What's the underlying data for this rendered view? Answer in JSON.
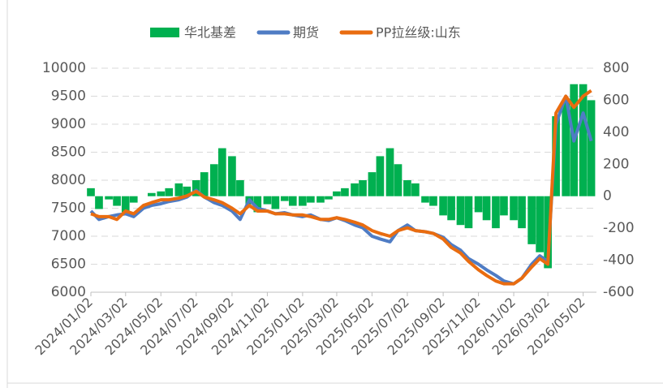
{
  "chart_data": {
    "type": "combo",
    "x": [
      "2024/01/02",
      "2024/01/16",
      "2024/02/02",
      "2024/02/16",
      "2024/03/02",
      "2024/03/16",
      "2024/04/02",
      "2024/04/16",
      "2024/05/02",
      "2024/05/16",
      "2024/06/02",
      "2024/06/16",
      "2024/07/02",
      "2024/07/16",
      "2024/08/02",
      "2024/08/16",
      "2024/09/02",
      "2024/09/16",
      "2024/10/02",
      "2024/10/16",
      "2024/11/02",
      "2024/11/16",
      "2024/12/02",
      "2024/12/16",
      "2025/01/02",
      "2025/01/16",
      "2025/02/02",
      "2025/02/16",
      "2025/03/02",
      "2025/03/16",
      "2025/04/02",
      "2025/04/16",
      "2025/05/02",
      "2025/05/16",
      "2025/06/02",
      "2025/06/16",
      "2025/07/02",
      "2025/07/16",
      "2025/08/02",
      "2025/08/16",
      "2025/09/02",
      "2025/09/16",
      "2025/10/02",
      "2025/10/16",
      "2025/11/02",
      "2025/11/16",
      "2025/12/02",
      "2025/12/16",
      "2026/01/02",
      "2026/01/16",
      "2026/02/02",
      "2026/02/16",
      "2026/03/02",
      "2026/03/16",
      "2026/04/02",
      "2026/04/16",
      "2026/05/02",
      "2026/05/16"
    ],
    "series": [
      {
        "name": "华北基差",
        "type": "bar",
        "axis": "y2",
        "color": "#00b050",
        "values": [
          50,
          -80,
          -20,
          -60,
          -100,
          -40,
          0,
          20,
          30,
          50,
          80,
          60,
          100,
          150,
          200,
          300,
          250,
          100,
          -50,
          -100,
          -50,
          -80,
          -30,
          -60,
          -60,
          -40,
          -40,
          -20,
          30,
          50,
          80,
          100,
          150,
          250,
          300,
          200,
          100,
          80,
          -40,
          -60,
          -120,
          -150,
          -180,
          -200,
          -100,
          -150,
          -200,
          -120,
          -150,
          -200,
          -300,
          -350,
          -450,
          500,
          600,
          700,
          700,
          600
        ]
      },
      {
        "name": "期货",
        "type": "line",
        "color": "#4f7cc4",
        "values": [
          7450,
          7300,
          7350,
          7380,
          7400,
          7350,
          7500,
          7550,
          7580,
          7620,
          7650,
          7700,
          7820,
          7700,
          7600,
          7550,
          7450,
          7300,
          7650,
          7500,
          7450,
          7400,
          7420,
          7380,
          7350,
          7380,
          7300,
          7280,
          7330,
          7280,
          7200,
          7150,
          7000,
          6950,
          6900,
          7100,
          7200,
          7100,
          7080,
          7050,
          6980,
          6850,
          6750,
          6600,
          6500,
          6400,
          6300,
          6200,
          6150,
          6250,
          6500,
          6650,
          6550,
          9000,
          9500,
          8700,
          9200,
          8700
        ]
      },
      {
        "name": "PP拉丝级:山东",
        "type": "line",
        "color": "#e96c10",
        "values": [
          7400,
          7350,
          7350,
          7300,
          7450,
          7400,
          7550,
          7600,
          7650,
          7650,
          7680,
          7720,
          7800,
          7700,
          7650,
          7600,
          7500,
          7400,
          7550,
          7450,
          7450,
          7400,
          7400,
          7380,
          7380,
          7350,
          7300,
          7300,
          7330,
          7300,
          7250,
          7200,
          7100,
          7050,
          7000,
          7100,
          7150,
          7100,
          7080,
          7050,
          6950,
          6800,
          6700,
          6550,
          6400,
          6300,
          6200,
          6150,
          6150,
          6250,
          6450,
          6600,
          6500,
          9200,
          9500,
          9300,
          9500,
          9600
        ]
      }
    ],
    "xlim": [
      "2024/01/02",
      "2026/05/25"
    ],
    "xticks": [
      "2024/01/02",
      "2024/03/02",
      "2024/05/02",
      "2024/07/02",
      "2024/09/02",
      "2024/11/02",
      "2025/01/02",
      "2025/03/02",
      "2025/05/02",
      "2025/07/02",
      "2025/09/02",
      "2025/11/02",
      "2026/01/02",
      "2026/03/02",
      "2026/05/02"
    ],
    "ylim": [
      6000,
      10000
    ],
    "yticks": [
      6000,
      6500,
      7000,
      7500,
      8000,
      8500,
      9000,
      9500,
      10000
    ],
    "y2lim": [
      -600,
      800
    ],
    "y2ticks": [
      -600,
      -400,
      -200,
      0,
      200,
      400,
      600,
      800
    ],
    "grid": true,
    "legend": "top"
  }
}
